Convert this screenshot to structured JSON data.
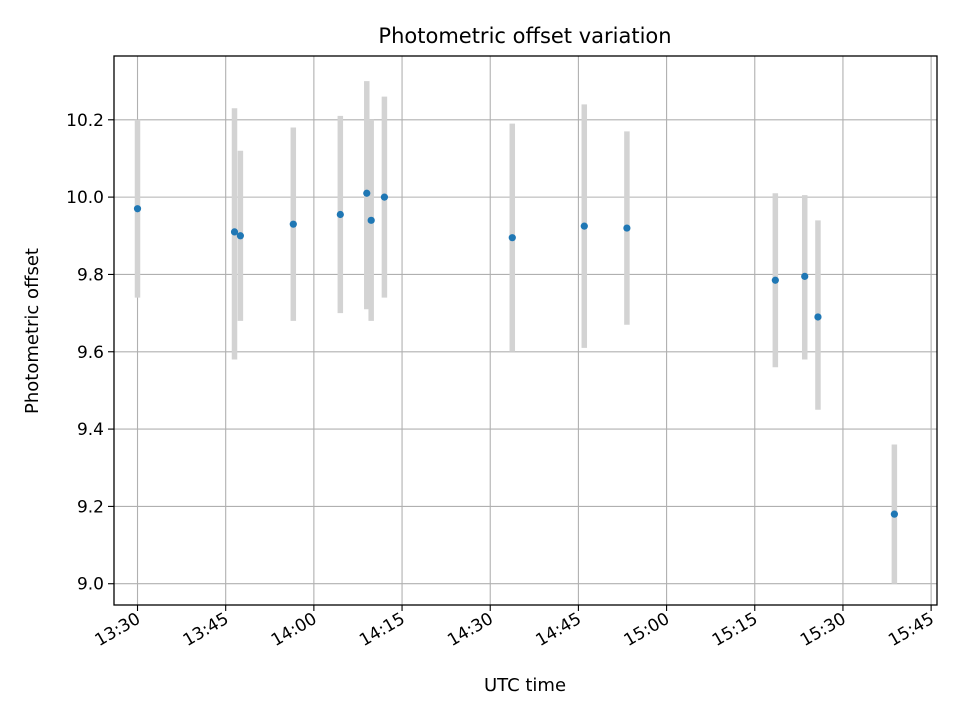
{
  "chart_data": {
    "type": "scatter",
    "title": "Photometric offset variation",
    "xlabel": "UTC time",
    "ylabel": "Photometric offset",
    "x_ticks": [
      "13:30",
      "13:45",
      "14:00",
      "14:15",
      "14:30",
      "14:45",
      "15:00",
      "15:15",
      "15:30",
      "15:45"
    ],
    "y_ticks": [
      "9.0",
      "9.2",
      "9.4",
      "9.6",
      "9.8",
      "10.0",
      "10.2"
    ],
    "xlim": [
      "13:26",
      "15:46"
    ],
    "ylim": [
      8.945,
      10.365
    ],
    "grid": true,
    "error_bars": true,
    "point_color": "#1f77b4",
    "errorbar_color": "#d3d3d3",
    "points": [
      {
        "x": "13:30:00",
        "y": 9.97,
        "ylow": 9.74,
        "yhigh": 10.2
      },
      {
        "x": "13:46:30",
        "y": 9.91,
        "ylow": 9.58,
        "yhigh": 10.23
      },
      {
        "x": "13:47:30",
        "y": 9.9,
        "ylow": 9.68,
        "yhigh": 10.12
      },
      {
        "x": "13:56:30",
        "y": 9.93,
        "ylow": 9.68,
        "yhigh": 10.18
      },
      {
        "x": "14:04:30",
        "y": 9.955,
        "ylow": 9.7,
        "yhigh": 10.21
      },
      {
        "x": "14:09:00",
        "y": 10.01,
        "ylow": 9.71,
        "yhigh": 10.3
      },
      {
        "x": "14:09:45",
        "y": 9.94,
        "ylow": 9.68,
        "yhigh": 10.2
      },
      {
        "x": "14:12:00",
        "y": 10.0,
        "ylow": 9.74,
        "yhigh": 10.26
      },
      {
        "x": "14:33:45",
        "y": 9.895,
        "ylow": 9.6,
        "yhigh": 10.19
      },
      {
        "x": "14:46:00",
        "y": 9.925,
        "ylow": 9.61,
        "yhigh": 10.24
      },
      {
        "x": "14:53:15",
        "y": 9.92,
        "ylow": 9.67,
        "yhigh": 10.17
      },
      {
        "x": "15:18:30",
        "y": 9.785,
        "ylow": 9.56,
        "yhigh": 10.01
      },
      {
        "x": "15:23:30",
        "y": 9.795,
        "ylow": 9.58,
        "yhigh": 10.005
      },
      {
        "x": "15:25:45",
        "y": 9.69,
        "ylow": 9.45,
        "yhigh": 9.94
      },
      {
        "x": "15:38:45",
        "y": 9.18,
        "ylow": 9.0,
        "yhigh": 9.36
      }
    ]
  }
}
